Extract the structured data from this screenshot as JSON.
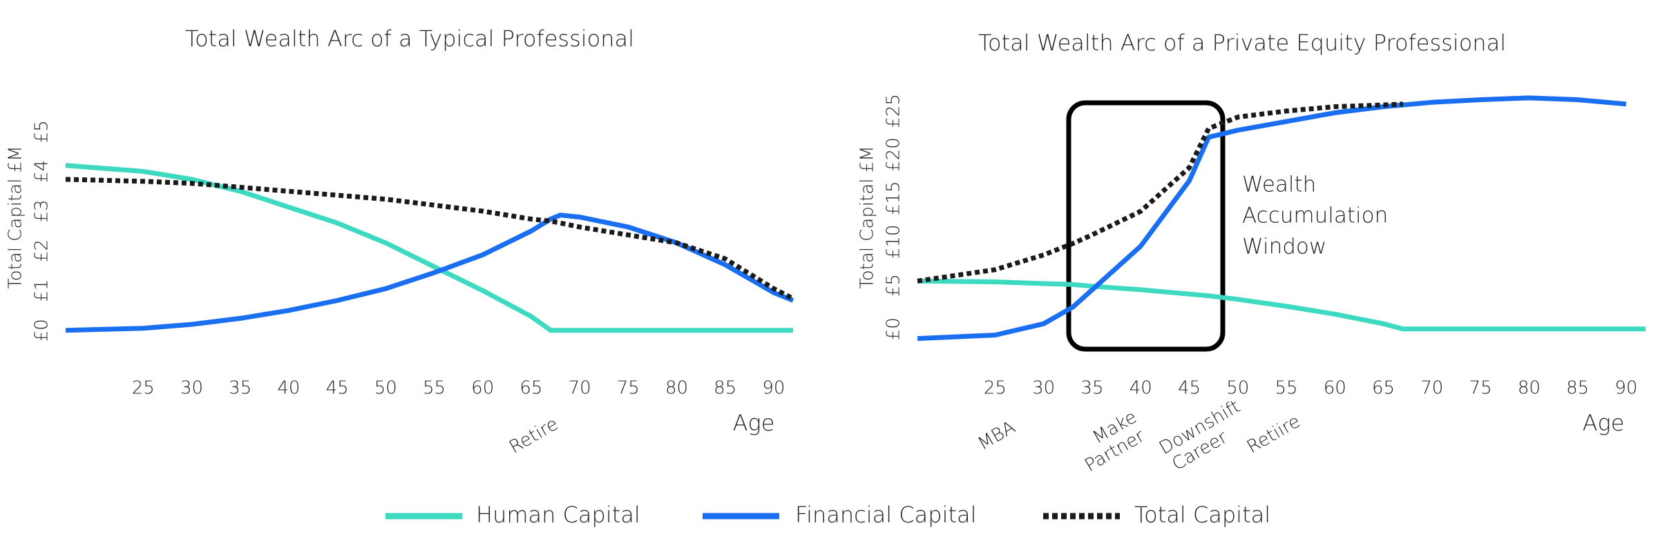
{
  "chart_data": [
    {
      "type": "line",
      "title": "Total Wealth Arc of a Typical Professional",
      "y_label": "Total Capital £M",
      "x_label": "Age",
      "annotations": [
        [
          "Retire"
        ]
      ],
      "x": [
        17,
        25,
        30,
        35,
        40,
        45,
        50,
        55,
        60,
        65,
        67,
        68,
        70,
        75,
        80,
        85,
        90,
        92
      ],
      "series": [
        {
          "name": "Human Capital",
          "color": "#3dd9c1",
          "line_style": "solid",
          "values": [
            4.15,
            4.0,
            3.8,
            3.5,
            3.1,
            2.7,
            2.2,
            1.6,
            1.0,
            0.35,
            0,
            0,
            0,
            0,
            0,
            0,
            0,
            0
          ]
        },
        {
          "name": "Financial Capital",
          "color": "#1a6ef0",
          "line_style": "solid",
          "values": [
            0,
            0.05,
            0.15,
            0.3,
            0.5,
            0.75,
            1.05,
            1.45,
            1.9,
            2.5,
            2.8,
            2.9,
            2.85,
            2.6,
            2.2,
            1.65,
            0.95,
            0.75
          ]
        },
        {
          "name": "Total Capital",
          "color": "#1a1a1a",
          "line_style": "dotted",
          "values": [
            3.8,
            3.75,
            3.7,
            3.6,
            3.5,
            3.4,
            3.3,
            3.15,
            3.0,
            2.8,
            2.75,
            2.7,
            2.6,
            2.4,
            2.2,
            1.8,
            1.05,
            0.8
          ]
        }
      ],
      "xlim": [
        17,
        92
      ],
      "xticks": [
        25,
        30,
        35,
        40,
        45,
        50,
        55,
        60,
        65,
        70,
        75,
        80,
        85,
        90
      ],
      "ylim": [
        -0.3,
        5.5
      ],
      "yticks": [
        {
          "value": 0,
          "label": "£0"
        },
        {
          "value": 1,
          "label": "£1"
        },
        {
          "value": 2,
          "label": "£2"
        },
        {
          "value": 3,
          "label": "£3"
        },
        {
          "value": 4,
          "label": "£4"
        },
        {
          "value": 5,
          "label": "£5"
        }
      ]
    },
    {
      "type": "line",
      "title": "Total Wealth Arc of a Private Equity Professional",
      "y_label": "Total Capital £M",
      "x_label": "Age",
      "annotations": [
        [
          "MBA"
        ],
        [
          "Make",
          "Partner"
        ],
        [
          "Downshift",
          "Career"
        ],
        [
          "Retiire"
        ]
      ],
      "window_label": [
        "Wealth",
        "Accumulation",
        "Window"
      ],
      "x": [
        17,
        25,
        30,
        33,
        35,
        40,
        45,
        47,
        50,
        55,
        60,
        65,
        67,
        70,
        75,
        80,
        85,
        90,
        92
      ],
      "series": [
        {
          "name": "Human Capital",
          "color": "#3dd9c1",
          "line_style": "solid",
          "values": [
            5.5,
            5.4,
            5.2,
            5.1,
            4.9,
            4.5,
            4.0,
            3.8,
            3.4,
            2.6,
            1.7,
            0.6,
            0,
            0,
            0,
            0,
            0,
            0,
            0
          ]
        },
        {
          "name": "Financial Capital",
          "color": "#1a6ef0",
          "line_style": "solid",
          "values": [
            -1.1,
            -0.7,
            0.6,
            2.5,
            4.5,
            9.5,
            17,
            22,
            22.8,
            23.8,
            24.8,
            25.5,
            25.7,
            26,
            26.3,
            26.5,
            26.3,
            25.8,
            null
          ]
        },
        {
          "name": "Total Capital",
          "color": "#1a1a1a",
          "line_style": "dotted",
          "values": [
            5.5,
            6.8,
            8.5,
            9.8,
            10.8,
            13.5,
            18.5,
            23,
            24.3,
            25,
            25.5,
            25.7,
            25.8,
            null,
            null,
            null,
            null,
            null,
            null
          ]
        }
      ],
      "xlim": [
        17,
        92
      ],
      "xticks": [
        25,
        30,
        35,
        40,
        45,
        50,
        55,
        60,
        65,
        70,
        75,
        80,
        85,
        90
      ],
      "ylim": [
        -2,
        28
      ],
      "yticks": [
        {
          "value": 0,
          "label": "£0"
        },
        {
          "value": 5,
          "label": "£5"
        },
        {
          "value": 10,
          "label": "£10"
        },
        {
          "value": 15,
          "label": "£15"
        },
        {
          "value": 20,
          "label": "£20"
        },
        {
          "value": 25,
          "label": "£25"
        }
      ]
    }
  ]
}
